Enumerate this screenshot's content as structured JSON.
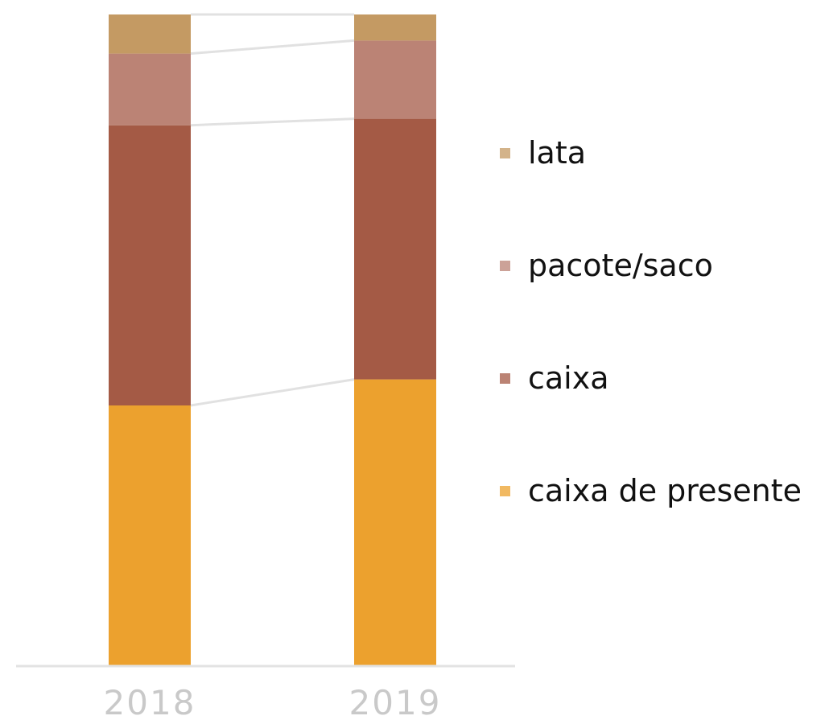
{
  "chart_data": {
    "type": "bar",
    "stacked": true,
    "normalized": true,
    "categories": [
      "2018",
      "2019"
    ],
    "series": [
      {
        "name": "caixa de presente",
        "values": [
          40,
          44
        ],
        "color": "#ECA12E"
      },
      {
        "name": "caixa",
        "values": [
          43,
          40
        ],
        "color": "#A45A45"
      },
      {
        "name": "pacote/saco",
        "values": [
          11,
          12
        ],
        "color": "#BB8375"
      },
      {
        "name": "lata",
        "values": [
          6,
          4
        ],
        "color": "#C49A63"
      }
    ],
    "ylim": [
      0,
      100
    ],
    "legend": {
      "placement": "right",
      "order": [
        "lata",
        "pacote/saco",
        "caixa",
        "caixa de presente"
      ]
    },
    "grid": false,
    "connector_lines": true
  }
}
